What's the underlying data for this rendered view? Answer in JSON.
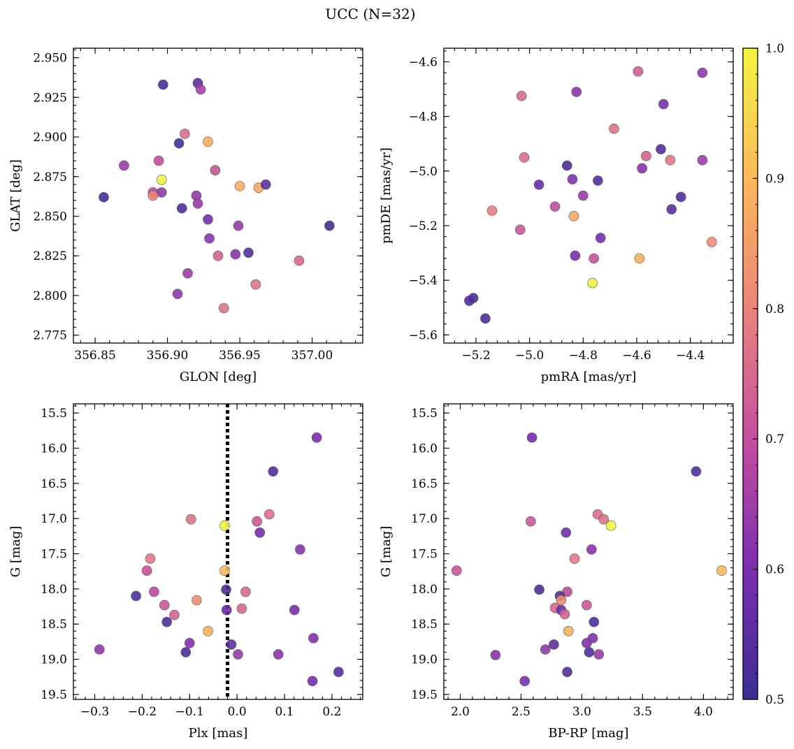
{
  "title": "UCC (N=32)",
  "colorbar": {
    "range": [
      0.5,
      1.0
    ],
    "ticks": [
      0.5,
      0.6,
      0.7,
      0.8,
      0.9,
      1.0
    ],
    "tick_labels": [
      "0.5",
      "0.6",
      "0.7",
      "0.8",
      "0.9",
      "1.0"
    ],
    "colormap": "plasma",
    "stops": [
      "#3b2e91",
      "#7a2eae",
      "#c44ea0",
      "#e8857a",
      "#fcb85a",
      "#f2f542"
    ]
  },
  "chart_data": [
    {
      "type": "scatter",
      "xlabel": "GLON [deg]",
      "ylabel": "GLAT [deg]",
      "xlim": [
        356.835,
        357.035
      ],
      "ylim": [
        2.77,
        2.956
      ],
      "xticks": [
        356.85,
        356.9,
        356.95,
        357.0
      ],
      "xtick_labels": [
        "356.85",
        "356.90",
        "356.95",
        "357.00"
      ],
      "yticks": [
        2.775,
        2.8,
        2.825,
        2.85,
        2.875,
        2.9,
        2.925,
        2.95
      ],
      "ytick_labels": [
        "2.775",
        "2.800",
        "2.825",
        "2.850",
        "2.875",
        "2.900",
        "2.925",
        "2.950"
      ],
      "inverted_y": false,
      "points": [
        {
          "x": 356.897,
          "y": 2.933,
          "c": 0.53
        },
        {
          "x": 356.921,
          "y": 2.934,
          "c": 0.55
        },
        {
          "x": 356.923,
          "y": 2.93,
          "c": 0.66
        },
        {
          "x": 356.912,
          "y": 2.902,
          "c": 0.76
        },
        {
          "x": 356.928,
          "y": 2.897,
          "c": 0.88
        },
        {
          "x": 356.908,
          "y": 2.896,
          "c": 0.52
        },
        {
          "x": 356.894,
          "y": 2.885,
          "c": 0.7
        },
        {
          "x": 356.87,
          "y": 2.882,
          "c": 0.64
        },
        {
          "x": 356.933,
          "y": 2.879,
          "c": 0.71
        },
        {
          "x": 356.896,
          "y": 2.873,
          "c": 1.0
        },
        {
          "x": 356.95,
          "y": 2.869,
          "c": 0.88
        },
        {
          "x": 356.963,
          "y": 2.868,
          "c": 0.87
        },
        {
          "x": 356.968,
          "y": 2.87,
          "c": 0.56
        },
        {
          "x": 356.89,
          "y": 2.865,
          "c": 0.69
        },
        {
          "x": 356.896,
          "y": 2.865,
          "c": 0.63
        },
        {
          "x": 356.89,
          "y": 2.863,
          "c": 0.8
        },
        {
          "x": 356.856,
          "y": 2.862,
          "c": 0.52
        },
        {
          "x": 356.92,
          "y": 2.863,
          "c": 0.63
        },
        {
          "x": 356.921,
          "y": 2.858,
          "c": 0.64
        },
        {
          "x": 356.91,
          "y": 2.855,
          "c": 0.54
        },
        {
          "x": 356.928,
          "y": 2.848,
          "c": 0.59
        },
        {
          "x": 356.949,
          "y": 2.844,
          "c": 0.64
        },
        {
          "x": 357.012,
          "y": 2.844,
          "c": 0.52
        },
        {
          "x": 356.929,
          "y": 2.836,
          "c": 0.62
        },
        {
          "x": 356.956,
          "y": 2.827,
          "c": 0.54
        },
        {
          "x": 356.947,
          "y": 2.826,
          "c": 0.62
        },
        {
          "x": 356.935,
          "y": 2.825,
          "c": 0.74
        },
        {
          "x": 356.991,
          "y": 2.822,
          "c": 0.75
        },
        {
          "x": 356.914,
          "y": 2.814,
          "c": 0.65
        },
        {
          "x": 356.961,
          "y": 2.807,
          "c": 0.77
        },
        {
          "x": 356.907,
          "y": 2.801,
          "c": 0.63
        },
        {
          "x": 356.939,
          "y": 2.792,
          "c": 0.77
        }
      ]
    },
    {
      "type": "scatter",
      "xlabel": "pmRA [mas/yr]",
      "ylabel": "pmDE [mas/yr]",
      "xlim": [
        -5.32,
        -4.24
      ],
      "ylim": [
        -5.63,
        -4.55
      ],
      "xticks": [
        -5.2,
        -5.0,
        -4.8,
        -4.6,
        -4.4
      ],
      "xtick_labels": [
        "−5.2",
        "−5.0",
        "−4.8",
        "−4.6",
        "−4.4"
      ],
      "yticks": [
        -5.6,
        -5.4,
        -5.2,
        -5.0,
        -4.8,
        -4.6
      ],
      "ytick_labels": [
        "−5.6",
        "−5.4",
        "−5.2",
        "−5.0",
        "−4.8",
        "−4.6"
      ],
      "inverted_y": false,
      "points": [
        {
          "x": -4.595,
          "y": -4.635,
          "c": 0.73
        },
        {
          "x": -4.355,
          "y": -4.64,
          "c": 0.63
        },
        {
          "x": -5.03,
          "y": -4.725,
          "c": 0.75
        },
        {
          "x": -4.825,
          "y": -4.71,
          "c": 0.62
        },
        {
          "x": -4.5,
          "y": -4.755,
          "c": 0.6
        },
        {
          "x": -4.685,
          "y": -4.845,
          "c": 0.77
        },
        {
          "x": -4.51,
          "y": -4.92,
          "c": 0.54
        },
        {
          "x": -5.02,
          "y": -4.95,
          "c": 0.76
        },
        {
          "x": -4.565,
          "y": -4.945,
          "c": 0.74
        },
        {
          "x": -4.475,
          "y": -4.96,
          "c": 0.78
        },
        {
          "x": -4.355,
          "y": -4.96,
          "c": 0.65
        },
        {
          "x": -4.86,
          "y": -4.98,
          "c": 0.53
        },
        {
          "x": -4.58,
          "y": -4.99,
          "c": 0.62
        },
        {
          "x": -4.84,
          "y": -5.03,
          "c": 0.61
        },
        {
          "x": -4.745,
          "y": -5.035,
          "c": 0.54
        },
        {
          "x": -4.965,
          "y": -5.05,
          "c": 0.57
        },
        {
          "x": -4.8,
          "y": -5.09,
          "c": 0.64
        },
        {
          "x": -4.435,
          "y": -5.095,
          "c": 0.54
        },
        {
          "x": -4.905,
          "y": -5.13,
          "c": 0.7
        },
        {
          "x": -4.47,
          "y": -5.14,
          "c": 0.55
        },
        {
          "x": -5.14,
          "y": -5.145,
          "c": 0.79
        },
        {
          "x": -4.835,
          "y": -5.165,
          "c": 0.87
        },
        {
          "x": -5.035,
          "y": -5.215,
          "c": 0.72
        },
        {
          "x": -4.735,
          "y": -5.245,
          "c": 0.59
        },
        {
          "x": -4.32,
          "y": -5.26,
          "c": 0.82
        },
        {
          "x": -4.83,
          "y": -5.31,
          "c": 0.6
        },
        {
          "x": -4.76,
          "y": -5.32,
          "c": 0.71
        },
        {
          "x": -4.59,
          "y": -5.32,
          "c": 0.88
        },
        {
          "x": -4.765,
          "y": -5.41,
          "c": 0.99
        },
        {
          "x": -5.21,
          "y": -5.465,
          "c": 0.53
        },
        {
          "x": -5.225,
          "y": -5.475,
          "c": 0.54
        },
        {
          "x": -5.165,
          "y": -5.54,
          "c": 0.53
        }
      ]
    },
    {
      "type": "scatter",
      "xlabel": "Plx [mas]",
      "ylabel": "G [mag]",
      "xlim": [
        -0.345,
        0.265
      ],
      "ylim": [
        15.37,
        19.57
      ],
      "xticks": [
        -0.3,
        -0.2,
        -0.1,
        0.0,
        0.1,
        0.2
      ],
      "xtick_labels": [
        "−0.3",
        "−0.2",
        "−0.1",
        "0.0",
        "0.1",
        "0.2"
      ],
      "yticks": [
        15.5,
        16.0,
        16.5,
        17.0,
        17.5,
        18.0,
        18.5,
        19.0,
        19.5
      ],
      "ytick_labels": [
        "15.5",
        "16.0",
        "16.5",
        "17.0",
        "17.5",
        "18.0",
        "18.5",
        "19.0",
        "19.5"
      ],
      "inverted_y": true,
      "vline": -0.02,
      "points": [
        {
          "x": 0.168,
          "y": 15.85,
          "c": 0.6
        },
        {
          "x": 0.076,
          "y": 16.33,
          "c": 0.54
        },
        {
          "x": -0.097,
          "y": 17.01,
          "c": 0.77
        },
        {
          "x": 0.068,
          "y": 16.94,
          "c": 0.76
        },
        {
          "x": 0.042,
          "y": 17.04,
          "c": 0.72
        },
        {
          "x": -0.026,
          "y": 17.1,
          "c": 1.0
        },
        {
          "x": 0.048,
          "y": 17.2,
          "c": 0.59
        },
        {
          "x": 0.133,
          "y": 17.44,
          "c": 0.62
        },
        {
          "x": -0.183,
          "y": 17.57,
          "c": 0.78
        },
        {
          "x": -0.026,
          "y": 17.74,
          "c": 0.9
        },
        {
          "x": -0.19,
          "y": 17.74,
          "c": 0.71
        },
        {
          "x": -0.023,
          "y": 18.01,
          "c": 0.53
        },
        {
          "x": -0.175,
          "y": 18.04,
          "c": 0.69
        },
        {
          "x": 0.018,
          "y": 18.04,
          "c": 0.75
        },
        {
          "x": -0.213,
          "y": 18.1,
          "c": 0.53
        },
        {
          "x": -0.085,
          "y": 18.16,
          "c": 0.82
        },
        {
          "x": -0.153,
          "y": 18.23,
          "c": 0.72
        },
        {
          "x": 0.01,
          "y": 18.28,
          "c": 0.75
        },
        {
          "x": -0.022,
          "y": 18.3,
          "c": 0.58
        },
        {
          "x": 0.121,
          "y": 18.3,
          "c": 0.6
        },
        {
          "x": -0.132,
          "y": 18.37,
          "c": 0.74
        },
        {
          "x": -0.148,
          "y": 18.47,
          "c": 0.53
        },
        {
          "x": -0.061,
          "y": 18.6,
          "c": 0.89
        },
        {
          "x": 0.161,
          "y": 18.7,
          "c": 0.61
        },
        {
          "x": -0.1,
          "y": 18.77,
          "c": 0.61
        },
        {
          "x": -0.012,
          "y": 18.79,
          "c": 0.56
        },
        {
          "x": -0.29,
          "y": 18.86,
          "c": 0.63
        },
        {
          "x": -0.108,
          "y": 18.9,
          "c": 0.53
        },
        {
          "x": 0.002,
          "y": 18.93,
          "c": 0.64
        },
        {
          "x": 0.087,
          "y": 18.93,
          "c": 0.62
        },
        {
          "x": 0.159,
          "y": 19.31,
          "c": 0.6
        },
        {
          "x": 0.214,
          "y": 19.18,
          "c": 0.54
        }
      ]
    },
    {
      "type": "scatter",
      "xlabel": "BP-RP [mag]",
      "ylabel": "G [mag]",
      "xlim": [
        1.865,
        4.245
      ],
      "ylim": [
        15.37,
        19.57
      ],
      "xticks": [
        2.0,
        2.5,
        3.0,
        3.5,
        4.0
      ],
      "xtick_labels": [
        "2.0",
        "2.5",
        "3.0",
        "3.5",
        "4.0"
      ],
      "yticks": [
        15.5,
        16.0,
        16.5,
        17.0,
        17.5,
        18.0,
        18.5,
        19.0,
        19.5
      ],
      "ytick_labels": [
        "15.5",
        "16.0",
        "16.5",
        "17.0",
        "17.5",
        "18.0",
        "18.5",
        "19.0",
        "19.5"
      ],
      "inverted_y": true,
      "points": [
        {
          "x": 2.59,
          "y": 15.85,
          "c": 0.6
        },
        {
          "x": 3.94,
          "y": 16.33,
          "c": 0.54
        },
        {
          "x": 3.13,
          "y": 16.94,
          "c": 0.76
        },
        {
          "x": 3.18,
          "y": 17.01,
          "c": 0.77
        },
        {
          "x": 2.58,
          "y": 17.04,
          "c": 0.72
        },
        {
          "x": 3.24,
          "y": 17.1,
          "c": 1.0
        },
        {
          "x": 2.87,
          "y": 17.2,
          "c": 0.59
        },
        {
          "x": 3.08,
          "y": 17.44,
          "c": 0.62
        },
        {
          "x": 2.94,
          "y": 17.57,
          "c": 0.78
        },
        {
          "x": 1.97,
          "y": 17.74,
          "c": 0.71
        },
        {
          "x": 4.15,
          "y": 17.74,
          "c": 0.9
        },
        {
          "x": 2.65,
          "y": 18.01,
          "c": 0.53
        },
        {
          "x": 2.88,
          "y": 18.04,
          "c": 0.69
        },
        {
          "x": 2.82,
          "y": 18.1,
          "c": 0.53
        },
        {
          "x": 2.83,
          "y": 18.16,
          "c": 0.82
        },
        {
          "x": 3.04,
          "y": 18.23,
          "c": 0.72
        },
        {
          "x": 2.78,
          "y": 18.27,
          "c": 0.75
        },
        {
          "x": 2.83,
          "y": 18.3,
          "c": 0.58
        },
        {
          "x": 2.86,
          "y": 18.36,
          "c": 0.74
        },
        {
          "x": 3.1,
          "y": 18.47,
          "c": 0.53
        },
        {
          "x": 2.89,
          "y": 18.6,
          "c": 0.89
        },
        {
          "x": 3.09,
          "y": 18.7,
          "c": 0.61
        },
        {
          "x": 3.04,
          "y": 18.77,
          "c": 0.61
        },
        {
          "x": 2.77,
          "y": 18.79,
          "c": 0.56
        },
        {
          "x": 2.7,
          "y": 18.86,
          "c": 0.63
        },
        {
          "x": 3.06,
          "y": 18.9,
          "c": 0.53
        },
        {
          "x": 3.14,
          "y": 18.93,
          "c": 0.64
        },
        {
          "x": 2.29,
          "y": 18.94,
          "c": 0.62
        },
        {
          "x": 2.88,
          "y": 19.18,
          "c": 0.54
        },
        {
          "x": 2.53,
          "y": 19.31,
          "c": 0.6
        }
      ]
    }
  ]
}
